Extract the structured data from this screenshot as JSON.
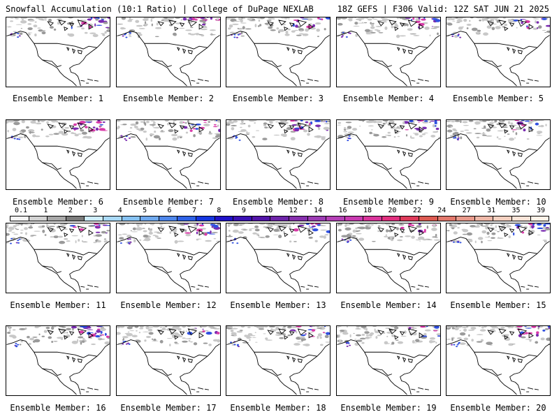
{
  "header": {
    "title_left": "Snowfall Accumulation (10:1 Ratio) | College of DuPage NEXLAB",
    "title_right": "18Z GEFS | F306 Valid: 12Z SAT JUN 21 2025"
  },
  "panels": [
    {
      "label": "Ensemble Member: 1"
    },
    {
      "label": "Ensemble Member: 2"
    },
    {
      "label": "Ensemble Member: 3"
    },
    {
      "label": "Ensemble Member: 4"
    },
    {
      "label": "Ensemble Member: 5"
    },
    {
      "label": "Ensemble Member: 6"
    },
    {
      "label": "Ensemble Member: 7"
    },
    {
      "label": "Ensemble Member: 8"
    },
    {
      "label": "Ensemble Member: 9"
    },
    {
      "label": "Ensemble Member: 10"
    },
    {
      "label": "Ensemble Member: 11"
    },
    {
      "label": "Ensemble Member: 12"
    },
    {
      "label": "Ensemble Member: 13"
    },
    {
      "label": "Ensemble Member: 14"
    },
    {
      "label": "Ensemble Member: 15"
    },
    {
      "label": "Ensemble Member: 16"
    },
    {
      "label": "Ensemble Member: 17"
    },
    {
      "label": "Ensemble Member: 18"
    },
    {
      "label": "Ensemble Member: 19"
    },
    {
      "label": "Ensemble Member: 20"
    }
  ],
  "legend": {
    "labels": [
      "0.1",
      "1",
      "2",
      "3",
      "4",
      "5",
      "6",
      "7",
      "8",
      "9",
      "10",
      "12",
      "14",
      "16",
      "18",
      "20",
      "22",
      "24",
      "27",
      "31",
      "35",
      "39"
    ],
    "colors": [
      "#f4f4f4",
      "#d2d2d2",
      "#a8a8a8",
      "#7c7c7c",
      "#cfeeff",
      "#a9d9f7",
      "#86c2f2",
      "#6fa9ee",
      "#4e86ea",
      "#2f62e6",
      "#1536e0",
      "#1f12c8",
      "#3a10b4",
      "#5214a8",
      "#6d24a8",
      "#8630ad",
      "#9c3cb4",
      "#b440b6",
      "#c83ab0",
      "#d8349a",
      "#e0307e",
      "#de3a5a",
      "#dc5a52",
      "#e2786c",
      "#e89a8c",
      "#eeb8a8",
      "#f4d0c0",
      "#fae4d8",
      "#fff2e8"
    ]
  },
  "colors": {
    "snow_light": "#c8c8c8",
    "snow_mid": "#9a9a9a",
    "snow_blue": "#3050e0",
    "snow_purple": "#7a2cb0",
    "snow_pink": "#d83aa8",
    "land_line": "#000000"
  }
}
